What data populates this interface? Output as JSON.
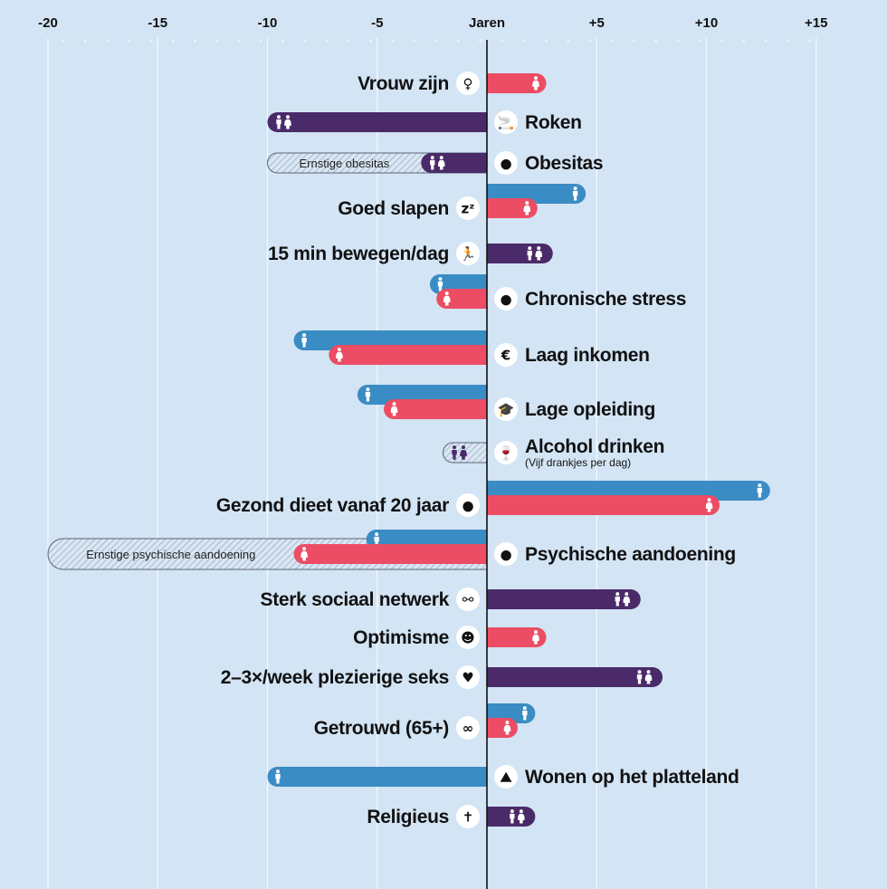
{
  "chart_data": {
    "type": "bar",
    "orientation": "horizontal",
    "title": "",
    "xlabel": "Jaren",
    "xlim": [
      -20,
      15
    ],
    "x_ticks": [
      -20,
      -15,
      -10,
      -5,
      0,
      5,
      10,
      15
    ],
    "tick_labels": [
      "-20",
      "-15",
      "-10",
      "-5",
      "Jaren",
      "+5",
      "+10",
      "+15"
    ],
    "grid": true,
    "colors": {
      "male": "#3a8cc4",
      "female": "#ec4d64",
      "both": "#4a2a68",
      "background": "#d3e4f4",
      "axis": "#111111"
    },
    "categories": [
      {
        "label": "Vrouw zijn",
        "icon": "female-symbol-icon",
        "glyph": "♀",
        "label_side": "left",
        "bars": [
          {
            "group": "female",
            "value": 2.7
          }
        ]
      },
      {
        "label": "Roken",
        "icon": "smoking-icon",
        "glyph": "🚬",
        "label_side": "right",
        "bars": [
          {
            "group": "both",
            "value": -10
          }
        ]
      },
      {
        "label": "Obesitas",
        "icon": "obese-person-icon",
        "glyph": "●",
        "label_side": "right",
        "bars": [
          {
            "group": "both",
            "value": -3
          }
        ],
        "extended": {
          "value": -10,
          "label": "Ernstige obesitas"
        }
      },
      {
        "label": "Goed slapen",
        "icon": "sleep-zzz-icon",
        "glyph": "zᶻ",
        "label_side": "left",
        "bars": [
          {
            "group": "male",
            "value": 4.5
          },
          {
            "group": "female",
            "value": 2.3
          }
        ]
      },
      {
        "label": "15 min bewegen/dag",
        "icon": "running-person-icon",
        "glyph": "🏃",
        "label_side": "left",
        "bars": [
          {
            "group": "both",
            "value": 3
          }
        ]
      },
      {
        "label": "Chronische stress",
        "icon": "head-stress-icon",
        "glyph": "●",
        "label_side": "right",
        "bars": [
          {
            "group": "male",
            "value": -2.6
          },
          {
            "group": "female",
            "value": -2.3
          }
        ]
      },
      {
        "label": "Laag inkomen",
        "icon": "euro-coin-icon",
        "glyph": "€",
        "label_side": "right",
        "bars": [
          {
            "group": "male",
            "value": -8.8
          },
          {
            "group": "female",
            "value": -7.2
          }
        ]
      },
      {
        "label": "Lage opleiding",
        "icon": "graduation-cap-icon",
        "glyph": "🎓",
        "label_side": "right",
        "bars": [
          {
            "group": "male",
            "value": -5.9
          },
          {
            "group": "female",
            "value": -4.7
          }
        ]
      },
      {
        "label": "Alcohol drinken",
        "sublabel": "(Vijf drankjes per dag)",
        "icon": "wine-glass-icon",
        "glyph": "🍷",
        "label_side": "right",
        "bars": [],
        "extended": {
          "value": -2,
          "label": "",
          "group": "both"
        }
      },
      {
        "label": "Gezond dieet vanaf 20 jaar",
        "icon": "apple-icon",
        "glyph": "●",
        "label_side": "left",
        "bars": [
          {
            "group": "male",
            "value": 12.9
          },
          {
            "group": "female",
            "value": 10.6
          }
        ]
      },
      {
        "label": "Psychische aandoening",
        "icon": "brain-storm-icon",
        "glyph": "●",
        "label_side": "right",
        "bars": [
          {
            "group": "male",
            "value": -5.5
          },
          {
            "group": "female",
            "value": -8.8
          }
        ],
        "extended": {
          "value": -20,
          "label": "Ernstige psychische aandoening"
        }
      },
      {
        "label": "Sterk sociaal netwerk",
        "icon": "network-icon",
        "glyph": "⚯",
        "label_side": "left",
        "bars": [
          {
            "group": "both",
            "value": 7
          }
        ]
      },
      {
        "label": "Optimisme",
        "icon": "smiley-icon",
        "glyph": "☻",
        "label_side": "left",
        "bars": [
          {
            "group": "female",
            "value": 2.7
          }
        ]
      },
      {
        "label": "2–3×/week plezierige seks",
        "icon": "heart-icon",
        "glyph": "♥",
        "label_side": "left",
        "bars": [
          {
            "group": "both",
            "value": 8
          }
        ]
      },
      {
        "label": "Getrouwd (65+)",
        "icon": "rings-icon",
        "glyph": "∞",
        "label_side": "left",
        "bars": [
          {
            "group": "male",
            "value": 2.2
          },
          {
            "group": "female",
            "value": 1.4
          }
        ]
      },
      {
        "label": "Wonen op het platteland",
        "icon": "countryside-icon",
        "glyph": "⛰",
        "label_side": "right",
        "bars": [
          {
            "group": "male",
            "value": -10
          }
        ]
      },
      {
        "label": "Religieus",
        "icon": "cross-icon",
        "glyph": "✝",
        "label_side": "left",
        "bars": [
          {
            "group": "both",
            "value": 2.2
          }
        ]
      }
    ]
  }
}
